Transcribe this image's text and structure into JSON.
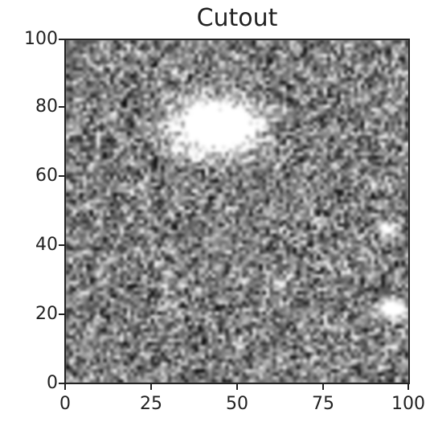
{
  "figure": {
    "title": "Cutout",
    "image_description_colormap": "gray",
    "x_ticks": [
      "0",
      "25",
      "50",
      "75",
      "100"
    ],
    "y_ticks": [
      "0",
      "20",
      "40",
      "60",
      "80",
      "100"
    ],
    "x_range": [
      0,
      100
    ],
    "y_range": [
      0,
      100
    ]
  }
}
